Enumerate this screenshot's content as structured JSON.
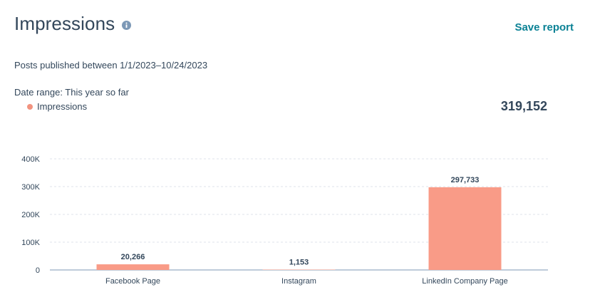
{
  "header": {
    "title": "Impressions",
    "info_icon": "info-icon",
    "save_label": "Save report"
  },
  "subtitle": "Posts published between 1/1/2023–10/24/2023",
  "date_range": "Date range: This year so far",
  "legend": {
    "label": "Impressions",
    "color": "#f2937f"
  },
  "total": "319,152",
  "colors": {
    "bar": "#f99b87",
    "accent": "#0b8295",
    "text": "#33475b",
    "grid": "#dfe3eb",
    "axis": "#7c98b6"
  },
  "chart_data": {
    "type": "bar",
    "categories": [
      "Facebook Page",
      "Instagram",
      "LinkedIn Company Page"
    ],
    "series": [
      {
        "name": "Impressions",
        "values": [
          20266,
          1153,
          297733
        ]
      }
    ],
    "value_labels": [
      "20,266",
      "1,153",
      "297,733"
    ],
    "yticks": [
      0,
      100000,
      200000,
      300000,
      400000
    ],
    "ytick_labels": [
      "0",
      "100K",
      "200K",
      "300K",
      "400K"
    ],
    "ylim": [
      0,
      400000
    ],
    "grid": true,
    "legend_position": "top-left"
  }
}
